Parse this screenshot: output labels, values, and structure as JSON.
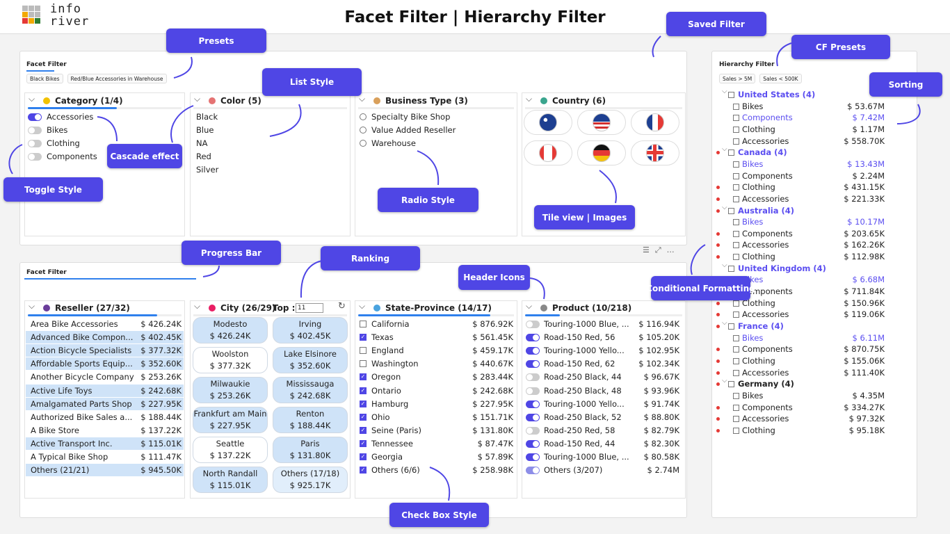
{
  "header": {
    "title": "Facet Filter | Hierarchy Filter",
    "logo": [
      "info",
      "river"
    ]
  },
  "callouts": [
    "Presets",
    "List Style",
    "Saved Filter",
    "CF Presets",
    "Sorting",
    "Cascade effect",
    "Toggle Style",
    "Radio Style",
    "Tile view | Images",
    "Progress Bar",
    "Ranking",
    "Header Icons",
    "Conditional Formatting",
    "Check Box Style"
  ],
  "top_panel": {
    "title": "Facet Filter",
    "presets": [
      "Black Bikes",
      "Red/Blue Accessories in Warehouse"
    ],
    "category": {
      "title": "Category (1/4)",
      "items": [
        {
          "name": "Accessories",
          "on": true
        },
        {
          "name": "Bikes",
          "on": false
        },
        {
          "name": "Clothing",
          "on": false
        },
        {
          "name": "Components",
          "on": false
        }
      ]
    },
    "color": {
      "title": "Color (5)",
      "items": [
        "Black",
        "Blue",
        "NA",
        "Red",
        "Silver"
      ]
    },
    "business_type": {
      "title": "Business Type (3)",
      "items": [
        "Specialty Bike Shop",
        "Value Added Reseller",
        "Warehouse"
      ]
    },
    "country": {
      "title": "Country (6)"
    }
  },
  "bottom_panel": {
    "title": "Facet Filter",
    "reseller": {
      "title": "Reseller (27/32)",
      "rows": [
        {
          "name": "Area Bike Accessories",
          "value": "$ 426.24K",
          "selected": false
        },
        {
          "name": "Advanced Bike Compon...",
          "value": "$ 402.45K",
          "selected": true
        },
        {
          "name": "Action Bicycle Specialists",
          "value": "$ 377.32K",
          "selected": true
        },
        {
          "name": "Affordable Sports Equip...",
          "value": "$ 352.60K",
          "selected": true
        },
        {
          "name": "Another Bicycle Company",
          "value": "$ 253.26K",
          "selected": false
        },
        {
          "name": "Active Life Toys",
          "value": "$ 242.68K",
          "selected": true
        },
        {
          "name": "Amalgamated Parts Shop",
          "value": "$ 227.95K",
          "selected": true
        },
        {
          "name": "Authorized Bike Sales a...",
          "value": "$ 188.44K",
          "selected": false
        },
        {
          "name": "A Bike Store",
          "value": "$ 137.22K",
          "selected": false
        },
        {
          "name": "Active Transport Inc.",
          "value": "$ 115.01K",
          "selected": true
        },
        {
          "name": "A Typical Bike Shop",
          "value": "$ 111.47K",
          "selected": false
        },
        {
          "name": "Others (21/21)",
          "value": "$ 945.50K",
          "selected": true
        }
      ]
    },
    "city": {
      "title": "City (26/29)",
      "top_label": "Top :",
      "top_value": "11",
      "tiles": [
        {
          "name": "Modesto",
          "value": "$ 426.24K",
          "selected": true
        },
        {
          "name": "Irving",
          "value": "$ 402.45K",
          "selected": true
        },
        {
          "name": "Woolston",
          "value": "$ 377.32K",
          "selected": false
        },
        {
          "name": "Lake Elsinore",
          "value": "$ 352.60K",
          "selected": true
        },
        {
          "name": "Milwaukie",
          "value": "$ 253.26K",
          "selected": true
        },
        {
          "name": "Mississauga",
          "value": "$ 242.68K",
          "selected": true
        },
        {
          "name": "Frankfurt am Main",
          "value": "$ 227.95K",
          "selected": true
        },
        {
          "name": "Renton",
          "value": "$ 188.44K",
          "selected": true
        },
        {
          "name": "Seattle",
          "value": "$ 137.22K",
          "selected": false
        },
        {
          "name": "Paris",
          "value": "$ 131.80K",
          "selected": true
        },
        {
          "name": "North Randall",
          "value": "$ 115.01K",
          "selected": true
        },
        {
          "name": "Others (17/18)",
          "value": "$ 925.17K",
          "selected": true
        }
      ]
    },
    "state": {
      "title": "State-Province (14/17)",
      "rows": [
        {
          "name": "California",
          "value": "$ 876.92K",
          "checked": false
        },
        {
          "name": "Texas",
          "value": "$ 561.45K",
          "checked": true
        },
        {
          "name": "England",
          "value": "$ 459.17K",
          "checked": false
        },
        {
          "name": "Washington",
          "value": "$ 440.67K",
          "checked": false
        },
        {
          "name": "Oregon",
          "value": "$ 283.44K",
          "checked": true
        },
        {
          "name": "Ontario",
          "value": "$ 242.68K",
          "checked": true
        },
        {
          "name": "Hamburg",
          "value": "$ 227.95K",
          "checked": true
        },
        {
          "name": "Ohio",
          "value": "$ 151.71K",
          "checked": true
        },
        {
          "name": "Seine (Paris)",
          "value": "$ 131.80K",
          "checked": true
        },
        {
          "name": "Tennessee",
          "value": "$ 87.47K",
          "checked": true
        },
        {
          "name": "Georgia",
          "value": "$ 57.89K",
          "checked": true
        },
        {
          "name": "Others (6/6)",
          "value": "$ 258.98K",
          "checked": true
        }
      ]
    },
    "product": {
      "title": "Product (10/218)",
      "rows": [
        {
          "name": "Touring-1000 Blue, ...",
          "value": "$ 116.94K",
          "on": false
        },
        {
          "name": "Road-150 Red, 56",
          "value": "$ 105.20K",
          "on": true
        },
        {
          "name": "Touring-1000 Yello...",
          "value": "$ 102.95K",
          "on": true
        },
        {
          "name": "Road-150 Red, 62",
          "value": "$ 102.34K",
          "on": true
        },
        {
          "name": "Road-250 Black, 44",
          "value": "$ 96.67K",
          "on": false
        },
        {
          "name": "Road-250 Black, 48",
          "value": "$ 93.96K",
          "on": false
        },
        {
          "name": "Touring-1000 Yello...",
          "value": "$ 91.74K",
          "on": true
        },
        {
          "name": "Road-250 Black, 52",
          "value": "$ 88.80K",
          "on": true
        },
        {
          "name": "Road-250 Red, 58",
          "value": "$ 82.79K",
          "on": false
        },
        {
          "name": "Road-150 Red, 44",
          "value": "$ 82.30K",
          "on": true
        },
        {
          "name": "Touring-1000 Blue, ...",
          "value": "$ 80.58K",
          "on": true
        },
        {
          "name": "Others (3/207)",
          "value": "$ 2.74M",
          "on": true
        }
      ]
    }
  },
  "hierarchy": {
    "title": "Hierarchy Filter",
    "presets": [
      "Sales > 5M",
      "Sales < 500K"
    ],
    "groups": [
      {
        "name": "United States (4)",
        "highlight": true,
        "flag": false,
        "items": [
          {
            "name": "Bikes",
            "value": "$ 53.67M",
            "highlight": false,
            "flag": false
          },
          {
            "name": "Components",
            "value": "$ 7.42M",
            "highlight": true,
            "flag": false
          },
          {
            "name": "Clothing",
            "value": "$ 1.17M",
            "highlight": false,
            "flag": false
          },
          {
            "name": "Accessories",
            "value": "$ 558.70K",
            "highlight": false,
            "flag": false
          }
        ]
      },
      {
        "name": "Canada (4)",
        "highlight": true,
        "flag": true,
        "items": [
          {
            "name": "Bikes",
            "value": "$ 13.43M",
            "highlight": true,
            "flag": false
          },
          {
            "name": "Components",
            "value": "$ 2.24M",
            "highlight": false,
            "flag": false
          },
          {
            "name": "Clothing",
            "value": "$ 431.15K",
            "highlight": false,
            "flag": true
          },
          {
            "name": "Accessories",
            "value": "$ 221.33K",
            "highlight": false,
            "flag": true
          }
        ]
      },
      {
        "name": "Australia (4)",
        "highlight": true,
        "flag": true,
        "items": [
          {
            "name": "Bikes",
            "value": "$ 10.17M",
            "highlight": true,
            "flag": false
          },
          {
            "name": "Components",
            "value": "$ 203.65K",
            "highlight": false,
            "flag": true
          },
          {
            "name": "Accessories",
            "value": "$ 162.26K",
            "highlight": false,
            "flag": true
          },
          {
            "name": "Clothing",
            "value": "$ 112.98K",
            "highlight": false,
            "flag": true
          }
        ]
      },
      {
        "name": "United Kingdom (4)",
        "highlight": true,
        "flag": false,
        "items": [
          {
            "name": "Bikes",
            "value": "$ 6.68M",
            "highlight": true,
            "flag": false
          },
          {
            "name": "Components",
            "value": "$ 711.84K",
            "highlight": false,
            "flag": false
          },
          {
            "name": "Clothing",
            "value": "$ 150.96K",
            "highlight": false,
            "flag": true
          },
          {
            "name": "Accessories",
            "value": "$ 119.06K",
            "highlight": false,
            "flag": true
          }
        ]
      },
      {
        "name": "France (4)",
        "highlight": true,
        "flag": true,
        "items": [
          {
            "name": "Bikes",
            "value": "$ 6.11M",
            "highlight": true,
            "flag": false
          },
          {
            "name": "Components",
            "value": "$ 870.75K",
            "highlight": false,
            "flag": true
          },
          {
            "name": "Clothing",
            "value": "$ 155.06K",
            "highlight": false,
            "flag": true
          },
          {
            "name": "Accessories",
            "value": "$ 111.40K",
            "highlight": false,
            "flag": true
          }
        ]
      },
      {
        "name": "Germany (4)",
        "highlight": false,
        "flag": true,
        "items": [
          {
            "name": "Bikes",
            "value": "$ 4.35M",
            "highlight": false,
            "flag": false
          },
          {
            "name": "Components",
            "value": "$ 334.27K",
            "highlight": false,
            "flag": true
          },
          {
            "name": "Accessories",
            "value": "$ 97.32K",
            "highlight": false,
            "flag": true
          },
          {
            "name": "Clothing",
            "value": "$ 95.18K",
            "highlight": false,
            "flag": true
          }
        ]
      }
    ]
  }
}
